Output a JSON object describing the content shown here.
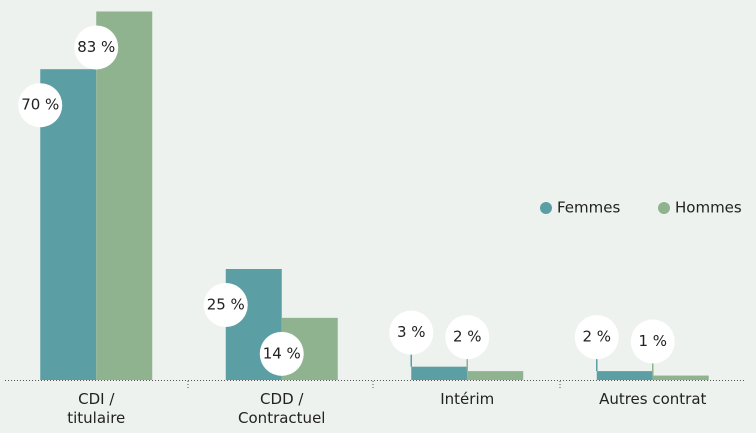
{
  "chart_data": {
    "type": "bar",
    "categories": [
      "CDI /\ntitulaire",
      "CDD /\nContractuel",
      "Intérim",
      "Autres contrat"
    ],
    "series": [
      {
        "name": "Femmes",
        "color": "#5b9ea4",
        "values": [
          70,
          25,
          3,
          2
        ],
        "value_labels": [
          "70 %",
          "25 %",
          "3 %",
          "2 %"
        ]
      },
      {
        "name": "Hommes",
        "color": "#8fb38e",
        "values": [
          83,
          14,
          2,
          1
        ],
        "value_labels": [
          "83 %",
          "14 %",
          "2 %",
          "1 %"
        ]
      }
    ],
    "ylim": [
      0,
      85
    ]
  }
}
